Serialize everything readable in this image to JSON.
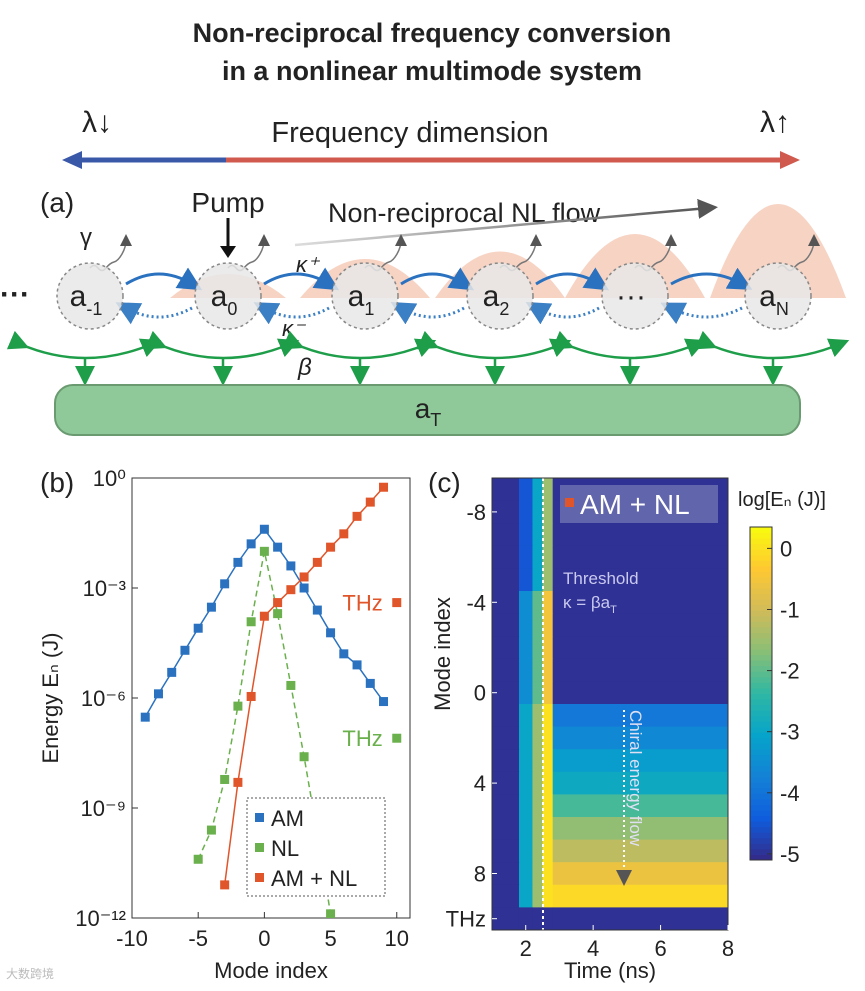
{
  "title_lines": [
    "Non-reciprocal frequency conversion",
    "in a nonlinear multimode system"
  ],
  "diagram": {
    "panel_label": "(a)",
    "lambda_left": "λ↓",
    "lambda_right": "λ↑",
    "axis_label": "Frequency dimension",
    "pump": "Pump",
    "flow_label": "Non-reciprocal NL flow",
    "gamma": "γ",
    "kappa_plus": "κ⁺",
    "kappa_minus": "κ⁻",
    "beta": "β",
    "left_ellipsis": "···",
    "modes": [
      {
        "base": "a",
        "sub": "-1"
      },
      {
        "base": "a",
        "sub": "0"
      },
      {
        "base": "a",
        "sub": "1"
      },
      {
        "base": "a",
        "sub": "2"
      },
      {
        "base": "···"
      },
      {
        "base": "a",
        "sub": "N"
      }
    ],
    "thermal_mode": {
      "base": "a",
      "sub": "T"
    }
  },
  "chart_data": [
    {
      "type": "line",
      "panel_label": "(b)",
      "xlabel": "Mode index",
      "ylabel": "Energy Eₙ (J)",
      "xlim": [
        -10,
        11
      ],
      "xticks": [
        -10,
        -5,
        0,
        5,
        10
      ],
      "ylim": [
        1e-12,
        1
      ],
      "yscale": "log",
      "yticks": [
        {
          "value": 1e-12,
          "label": "10⁻¹²"
        },
        {
          "value": 1e-09,
          "label": "10⁻⁹"
        },
        {
          "value": 1e-06,
          "label": "10⁻⁶"
        },
        {
          "value": 0.001,
          "label": "10⁻³"
        },
        {
          "value": 1,
          "label": "10⁰"
        }
      ],
      "legend": "lower center",
      "series": [
        {
          "name": "AM",
          "color": "#2a72c0",
          "line_style": "solid",
          "x": [
            -9,
            -8,
            -7,
            -6,
            -5,
            -4,
            -3,
            -2,
            -1,
            0,
            1,
            2,
            3,
            4,
            5,
            6,
            7,
            8,
            9
          ],
          "values": [
            3e-07,
            1.3e-06,
            5e-06,
            2e-05,
            8e-05,
            0.0003,
            0.0013,
            0.005,
            0.016,
            0.04,
            0.013,
            0.004,
            0.001,
            0.00025,
            6e-05,
            1.6e-05,
            8e-06,
            2.5e-06,
            8e-07
          ]
        },
        {
          "name": "NL",
          "color": "#6ab04c",
          "line_style": "dashed",
          "x": [
            -5,
            -4,
            -3,
            -2,
            -1,
            0,
            1,
            2,
            3,
            4,
            5
          ],
          "values": [
            4e-11,
            2.5e-10,
            6e-09,
            6e-07,
            0.00012,
            0.01,
            0.0002,
            2.2e-06,
            2.5e-08,
            2e-10,
            1.3e-12
          ],
          "thz": {
            "x": 10,
            "value": 8e-08,
            "label": "THz"
          }
        },
        {
          "name": "AM + NL",
          "color": "#e0552a",
          "line_style": "solid",
          "x": [
            -3,
            -2,
            -1,
            0,
            1,
            2,
            3,
            4,
            5,
            6,
            7,
            8,
            9
          ],
          "values": [
            8e-12,
            5e-09,
            1.1e-06,
            0.00017,
            0.0004,
            0.0009,
            0.002,
            0.005,
            0.013,
            0.03,
            0.09,
            0.22,
            0.56
          ],
          "thz": {
            "x": 10,
            "value": 0.0004,
            "label": "THz"
          }
        }
      ]
    },
    {
      "type": "heatmap",
      "panel_label": "(c)",
      "xlabel": "Time (ns)",
      "ylabel": "Mode index",
      "xlim": [
        1,
        8
      ],
      "xticks": [
        2,
        4,
        6,
        8
      ],
      "ylim": [
        -9.5,
        10.5
      ],
      "yticks": [
        -8,
        -4,
        0,
        4,
        8,
        {
          "value": 10,
          "label": "THz"
        }
      ],
      "time_edges": [
        1,
        1.8,
        2.2,
        2.5,
        2.8,
        8
      ],
      "y": [
        -9,
        -8,
        -7,
        -6,
        -5,
        -4,
        -3,
        -2,
        -1,
        0,
        1,
        2,
        3,
        4,
        5,
        6,
        7,
        8,
        9,
        10
      ],
      "z": [
        [
          -5,
          -4.5,
          -3,
          -1.5,
          -5
        ],
        [
          -5,
          -4.5,
          -3,
          -1.5,
          -5
        ],
        [
          -5,
          -4.5,
          -3,
          -1.5,
          -5
        ],
        [
          -5,
          -4.5,
          -3,
          -1.5,
          -5
        ],
        [
          -5,
          -4.5,
          -3,
          -1.5,
          -5
        ],
        [
          -5,
          -3.5,
          -2,
          -0.5,
          -5
        ],
        [
          -5,
          -3.5,
          -2,
          -0.5,
          -5
        ],
        [
          -5,
          -3.5,
          -2,
          -0.5,
          -5
        ],
        [
          -5,
          -3.5,
          -2,
          -0.5,
          -5
        ],
        [
          -5,
          -3.5,
          -2,
          -0.5,
          -5
        ],
        [
          -5,
          -3,
          -1.5,
          0,
          -3.9
        ],
        [
          -5,
          -3,
          -1.5,
          0,
          -3.6
        ],
        [
          -5,
          -3,
          -1.5,
          0,
          -3.2
        ],
        [
          -5,
          -3,
          -1.5,
          0,
          -2.9
        ],
        [
          -5,
          -3,
          -1.5,
          0,
          -2.2
        ],
        [
          -5,
          -3,
          -1.5,
          0,
          -1.6
        ],
        [
          -5,
          -3,
          -1.5,
          0,
          -1.2
        ],
        [
          -5,
          -3,
          -1.5,
          0,
          -0.6
        ],
        [
          -5,
          -3,
          -1.5,
          0,
          -0.1
        ],
        [
          -5,
          -5,
          -5,
          -5,
          -5
        ]
      ],
      "colormap": "parula",
      "colorbar_label": "log[Eₙ (J)]",
      "zlim": [
        -5.1,
        0.35
      ],
      "zticks": [
        0,
        -1,
        -2,
        -3,
        -4,
        -5
      ],
      "legend_label": "AM + NL",
      "legend_color": "#e0552a",
      "annotations": {
        "threshold": "Threshold",
        "formula": "κ = βa",
        "formula_sub": "T",
        "chiral": "Chiral energy flow"
      }
    }
  ],
  "watermark": "大数跨境"
}
